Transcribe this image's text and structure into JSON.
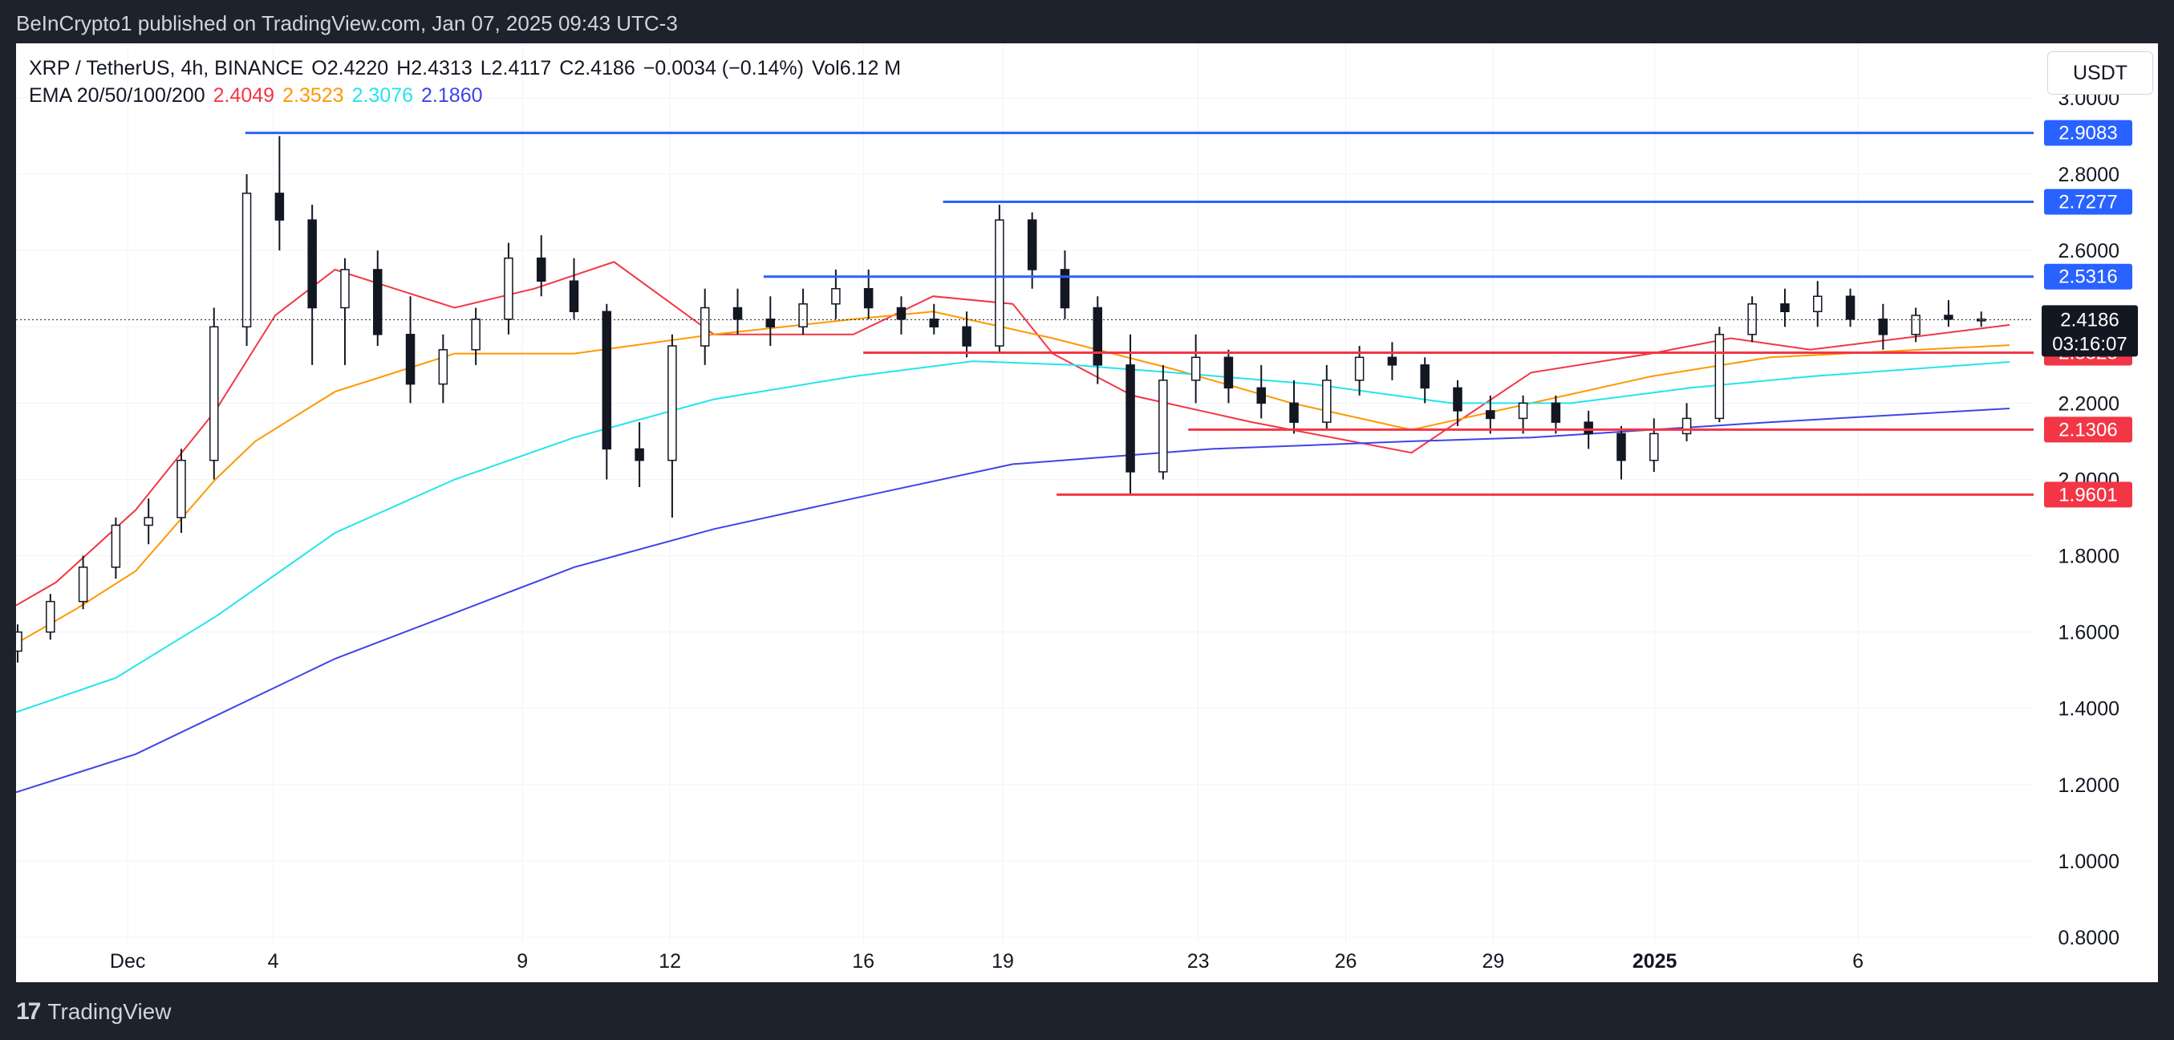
{
  "publisher": "BeInCrypto1 published on TradingView.com, Jan 07, 2025 09:43 UTC-3",
  "footer": {
    "logo": "17",
    "brand": "TradingView"
  },
  "header": {
    "symbol": "XRP / TetherUS, 4h, BINANCE",
    "open_label": "O",
    "open": "2.4220",
    "high_label": "H",
    "high": "2.4313",
    "low_label": "L",
    "low": "2.4117",
    "close_label": "C",
    "close": "2.4186",
    "change": "−0.0034 (−0.14%)",
    "vol_label": "Vol",
    "vol": "6.12 M",
    "ema_label": "EMA 20/50/100/200",
    "ema20": "2.4049",
    "ema50": "2.3523",
    "ema100": "2.3076",
    "ema200": "2.1860"
  },
  "currency_button": "USDT",
  "colors": {
    "ema20": "#f23645",
    "ema50": "#ff9800",
    "ema100": "#22e5ec",
    "ema200": "#3e44e8",
    "resistance": "#2962ff",
    "support": "#f23645",
    "price_tag": "#131722",
    "candle": "#131722"
  },
  "chart_data": {
    "type": "candlestick",
    "timeframe": "4h",
    "y_axis": {
      "min": 0.8,
      "max": 3.0,
      "ticks": [
        "3.0000",
        "2.8000",
        "2.6000",
        "2.4000",
        "2.2000",
        "2.0000",
        "1.8000",
        "1.6000",
        "1.4000",
        "1.2000",
        "1.0000",
        "0.8000"
      ]
    },
    "x_axis": {
      "ticks": [
        "Dec",
        "4",
        "9",
        "12",
        "16",
        "19",
        "23",
        "26",
        "29",
        "2025",
        "6"
      ]
    },
    "last_price": "2.4186",
    "countdown": "03:16:07",
    "resistance_levels": [
      {
        "label": "2.9083",
        "value": 2.9083,
        "from": "Dec 3"
      },
      {
        "label": "2.7277",
        "value": 2.7277,
        "from": "Dec 17"
      },
      {
        "label": "2.5316",
        "value": 2.5316,
        "from": "Dec 14"
      }
    ],
    "support_levels": [
      {
        "label": "2.3323",
        "value": 2.3323,
        "from": "Dec 16"
      },
      {
        "label": "2.1306",
        "value": 2.1306,
        "from": "Dec 23"
      },
      {
        "label": "1.9601",
        "value": 1.9601,
        "from": "Dec 20"
      }
    ],
    "ema_series": [
      {
        "name": "EMA 20",
        "color": "#f23645",
        "x": [
          0,
          0.02,
          0.06,
          0.1,
          0.13,
          0.16,
          0.22,
          0.26,
          0.3,
          0.35,
          0.42,
          0.46,
          0.5,
          0.52,
          0.56,
          0.62,
          0.7,
          0.76,
          0.82,
          0.86,
          0.9,
          1.0
        ],
        "y": [
          1.67,
          1.73,
          1.92,
          2.18,
          2.43,
          2.55,
          2.45,
          2.5,
          2.57,
          2.38,
          2.38,
          2.48,
          2.46,
          2.33,
          2.22,
          2.15,
          2.07,
          2.28,
          2.33,
          2.37,
          2.34,
          2.405
        ]
      },
      {
        "name": "EMA 50",
        "color": "#ff9800",
        "x": [
          0,
          0.03,
          0.06,
          0.1,
          0.12,
          0.16,
          0.22,
          0.28,
          0.35,
          0.42,
          0.46,
          0.52,
          0.58,
          0.64,
          0.7,
          0.76,
          0.82,
          0.88,
          1.0
        ],
        "y": [
          1.57,
          1.66,
          1.76,
          2.0,
          2.1,
          2.23,
          2.33,
          2.33,
          2.38,
          2.42,
          2.44,
          2.37,
          2.29,
          2.2,
          2.13,
          2.2,
          2.27,
          2.32,
          2.352
        ]
      },
      {
        "name": "EMA 100",
        "color": "#22e5ec",
        "x": [
          0,
          0.05,
          0.1,
          0.16,
          0.22,
          0.28,
          0.35,
          0.42,
          0.48,
          0.53,
          0.58,
          0.65,
          0.72,
          0.78,
          0.84,
          0.9,
          1.0
        ],
        "y": [
          1.39,
          1.48,
          1.64,
          1.86,
          2.0,
          2.11,
          2.21,
          2.27,
          2.31,
          2.3,
          2.28,
          2.25,
          2.2,
          2.2,
          2.24,
          2.27,
          2.308
        ]
      },
      {
        "name": "EMA 200",
        "color": "#3e44e8",
        "x": [
          0,
          0.06,
          0.1,
          0.16,
          0.22,
          0.28,
          0.35,
          0.42,
          0.5,
          0.55,
          0.6,
          0.65,
          0.7,
          0.76,
          0.82,
          0.88,
          1.0
        ],
        "y": [
          1.18,
          1.28,
          1.38,
          1.53,
          1.65,
          1.77,
          1.87,
          1.95,
          2.04,
          2.06,
          2.08,
          2.09,
          2.1,
          2.11,
          2.13,
          2.15,
          2.186
        ]
      }
    ],
    "candles_ohlc": [
      [
        1.55,
        1.62,
        1.52,
        1.6
      ],
      [
        1.6,
        1.7,
        1.58,
        1.68
      ],
      [
        1.68,
        1.8,
        1.66,
        1.77
      ],
      [
        1.77,
        1.9,
        1.74,
        1.88
      ],
      [
        1.88,
        1.95,
        1.83,
        1.9
      ],
      [
        1.9,
        2.08,
        1.86,
        2.05
      ],
      [
        2.05,
        2.45,
        2.0,
        2.4
      ],
      [
        2.4,
        2.8,
        2.35,
        2.75
      ],
      [
        2.75,
        2.9,
        2.6,
        2.68
      ],
      [
        2.68,
        2.72,
        2.3,
        2.45
      ],
      [
        2.45,
        2.58,
        2.3,
        2.55
      ],
      [
        2.55,
        2.6,
        2.35,
        2.38
      ],
      [
        2.38,
        2.48,
        2.2,
        2.25
      ],
      [
        2.25,
        2.38,
        2.2,
        2.34
      ],
      [
        2.34,
        2.45,
        2.3,
        2.42
      ],
      [
        2.42,
        2.62,
        2.38,
        2.58
      ],
      [
        2.58,
        2.64,
        2.48,
        2.52
      ],
      [
        2.52,
        2.58,
        2.42,
        2.44
      ],
      [
        2.44,
        2.46,
        2.0,
        2.08
      ],
      [
        2.08,
        2.15,
        1.98,
        2.05
      ],
      [
        2.05,
        2.38,
        1.9,
        2.35
      ],
      [
        2.35,
        2.5,
        2.3,
        2.45
      ],
      [
        2.45,
        2.5,
        2.38,
        2.42
      ],
      [
        2.42,
        2.48,
        2.35,
        2.4
      ],
      [
        2.4,
        2.5,
        2.38,
        2.46
      ],
      [
        2.46,
        2.55,
        2.42,
        2.5
      ],
      [
        2.5,
        2.55,
        2.42,
        2.45
      ],
      [
        2.45,
        2.48,
        2.38,
        2.42
      ],
      [
        2.42,
        2.46,
        2.38,
        2.4
      ],
      [
        2.4,
        2.44,
        2.32,
        2.35
      ],
      [
        2.35,
        2.72,
        2.33,
        2.68
      ],
      [
        2.68,
        2.7,
        2.5,
        2.55
      ],
      [
        2.55,
        2.6,
        2.42,
        2.45
      ],
      [
        2.45,
        2.48,
        2.25,
        2.3
      ],
      [
        2.3,
        2.38,
        1.96,
        2.02
      ],
      [
        2.02,
        2.3,
        2.0,
        2.26
      ],
      [
        2.26,
        2.38,
        2.2,
        2.32
      ],
      [
        2.32,
        2.34,
        2.2,
        2.24
      ],
      [
        2.24,
        2.3,
        2.16,
        2.2
      ],
      [
        2.2,
        2.26,
        2.12,
        2.15
      ],
      [
        2.15,
        2.3,
        2.13,
        2.26
      ],
      [
        2.26,
        2.35,
        2.22,
        2.32
      ],
      [
        2.32,
        2.36,
        2.26,
        2.3
      ],
      [
        2.3,
        2.32,
        2.2,
        2.24
      ],
      [
        2.24,
        2.26,
        2.14,
        2.18
      ],
      [
        2.18,
        2.22,
        2.12,
        2.16
      ],
      [
        2.16,
        2.22,
        2.12,
        2.2
      ],
      [
        2.2,
        2.22,
        2.12,
        2.15
      ],
      [
        2.15,
        2.18,
        2.08,
        2.12
      ],
      [
        2.12,
        2.14,
        2.0,
        2.05
      ],
      [
        2.05,
        2.16,
        2.02,
        2.12
      ],
      [
        2.12,
        2.2,
        2.1,
        2.16
      ],
      [
        2.16,
        2.4,
        2.15,
        2.38
      ],
      [
        2.38,
        2.48,
        2.36,
        2.46
      ],
      [
        2.46,
        2.5,
        2.4,
        2.44
      ],
      [
        2.44,
        2.52,
        2.4,
        2.48
      ],
      [
        2.48,
        2.5,
        2.4,
        2.42
      ],
      [
        2.42,
        2.46,
        2.34,
        2.38
      ],
      [
        2.38,
        2.45,
        2.36,
        2.43
      ],
      [
        2.43,
        2.47,
        2.4,
        2.42
      ],
      [
        2.42,
        2.44,
        2.4,
        2.42
      ]
    ]
  }
}
